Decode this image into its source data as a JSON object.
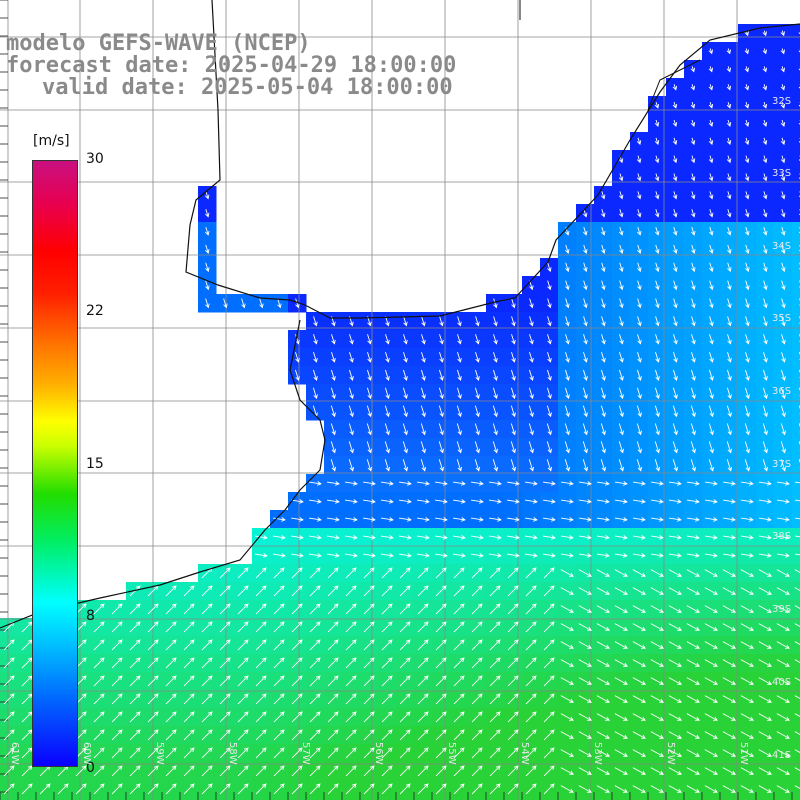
{
  "title": {
    "line1": "modelo GEFS-WAVE (NCEP)",
    "line2": "forecast date: 2025-04-29 18:00:00",
    "line3": "valid date: 2025-05-04 18:00:00"
  },
  "legend": {
    "unit": "[m/s]",
    "ticks": [
      "30",
      "22",
      "15",
      "8",
      "0"
    ]
  },
  "grid": {
    "lat_labels": [
      "32S",
      "33S",
      "34S",
      "35S",
      "36S",
      "37S",
      "38S",
      "39S",
      "40S",
      "41S"
    ],
    "lon_labels": [
      "61W",
      "60W",
      "59W",
      "58W",
      "57W",
      "56W",
      "55W",
      "54W",
      "53W",
      "52W",
      "51W"
    ]
  },
  "colors": {
    "calm": "#0a10ff",
    "moderate": "#00ddff",
    "strong": "#33ee33"
  }
}
